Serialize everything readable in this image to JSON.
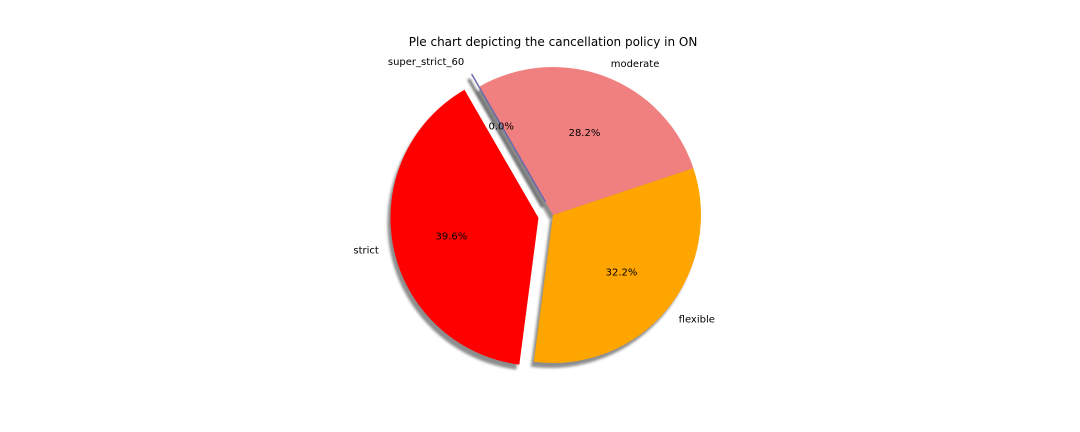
{
  "chart_data": {
    "type": "pie",
    "title": "Ple chart depicting the cancellation policy in ON",
    "start_angle_deg": 120,
    "direction": "counterclockwise",
    "shadow": true,
    "slices": [
      {
        "label": "strict",
        "percent_label": "39.6%",
        "value": 39.6,
        "color": "#ff0000",
        "explode": 0.1
      },
      {
        "label": "flexible",
        "percent_label": "32.2%",
        "value": 32.2,
        "color": "#ffa500",
        "explode": 0.0
      },
      {
        "label": "moderate",
        "percent_label": "28.2%",
        "value": 28.2,
        "color": "#f08080",
        "explode": 0.0
      },
      {
        "label": "super_strict_60",
        "percent_label": "0.0%",
        "value": 0.0,
        "color": "#6a6aaa",
        "explode": 0.1
      }
    ]
  }
}
